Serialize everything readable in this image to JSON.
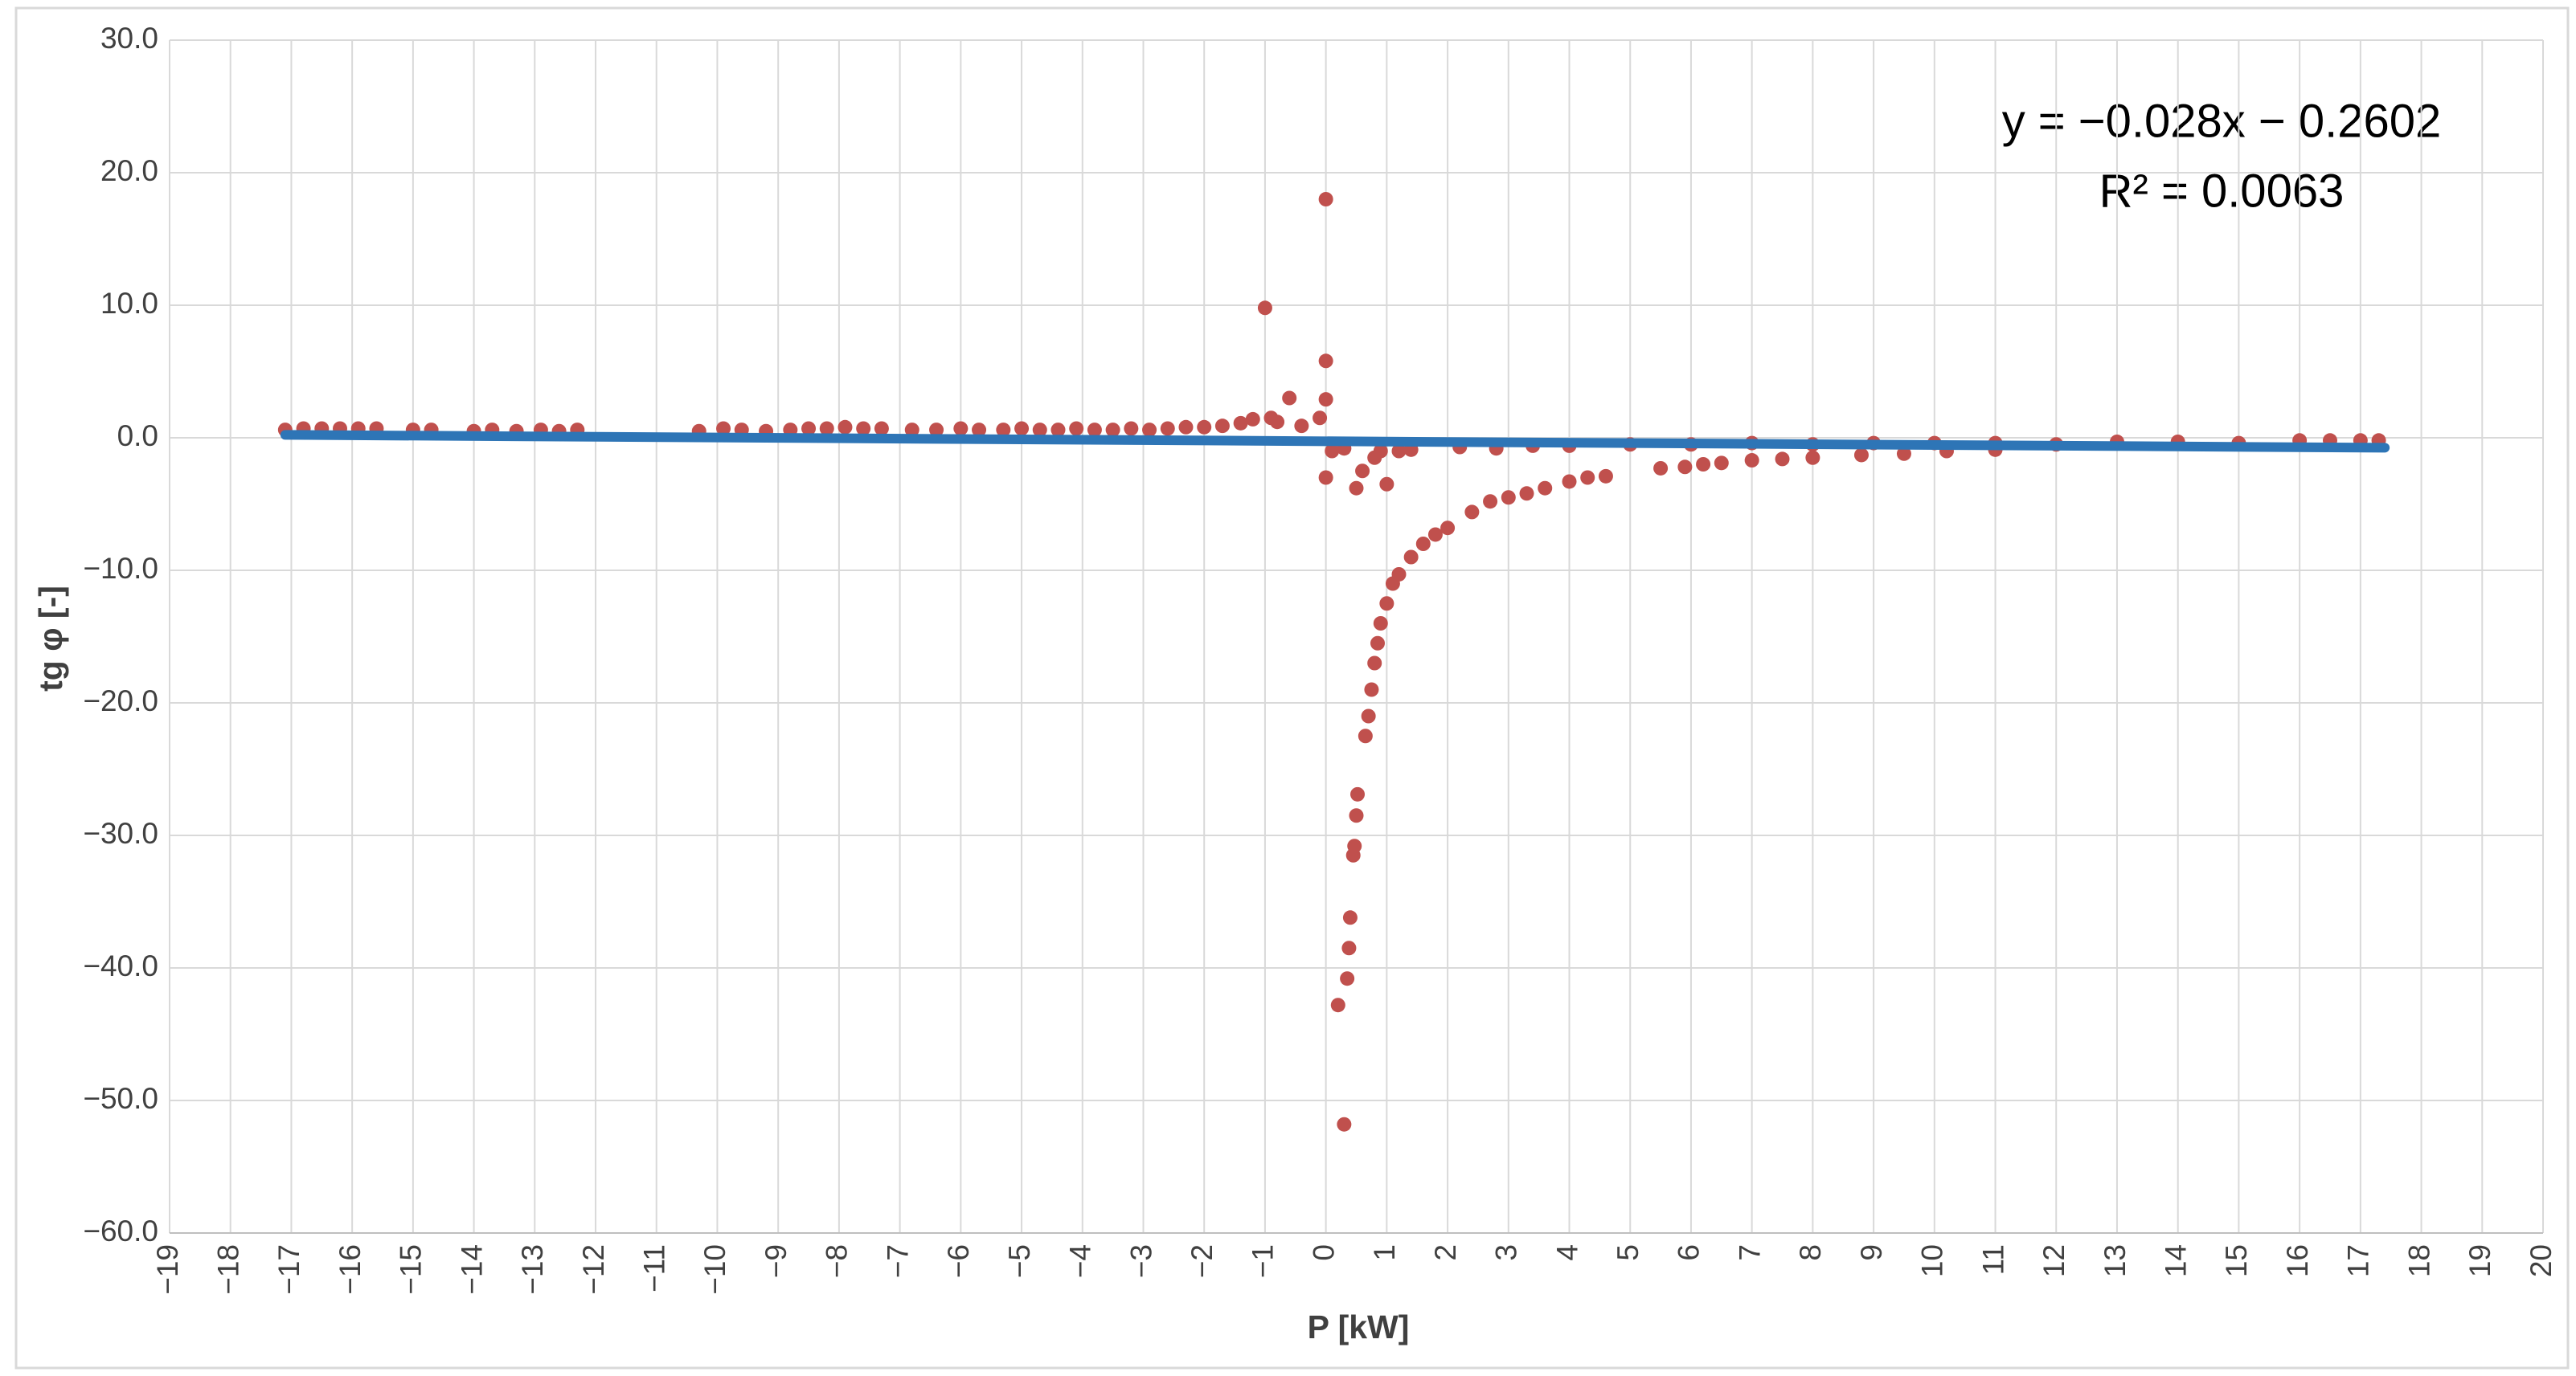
{
  "chart_data": {
    "type": "scatter",
    "x_label": "P [kW]",
    "y_label": "tg φ [-]",
    "annotations": [
      "y = −0.028x − 0.2602",
      "R² = 0.0063"
    ],
    "grid": true,
    "xlim": [
      -19,
      20
    ],
    "ylim": [
      -60,
      30
    ],
    "xticks": [
      {
        "value": -19,
        "label": "−19"
      },
      {
        "value": -18,
        "label": "−18"
      },
      {
        "value": -17,
        "label": "−17"
      },
      {
        "value": -16,
        "label": "−16"
      },
      {
        "value": -15,
        "label": "−15"
      },
      {
        "value": -14,
        "label": "−14"
      },
      {
        "value": -13,
        "label": "−13"
      },
      {
        "value": -12,
        "label": "−12"
      },
      {
        "value": -11,
        "label": "−11"
      },
      {
        "value": -10,
        "label": "−10"
      },
      {
        "value": -9,
        "label": "−9"
      },
      {
        "value": -8,
        "label": "−8"
      },
      {
        "value": -7,
        "label": "−7"
      },
      {
        "value": -6,
        "label": "−6"
      },
      {
        "value": -5,
        "label": "−5"
      },
      {
        "value": -4,
        "label": "−4"
      },
      {
        "value": -3,
        "label": "−3"
      },
      {
        "value": -2,
        "label": "−2"
      },
      {
        "value": -1,
        "label": "−1"
      },
      0,
      1,
      2,
      3,
      4,
      5,
      6,
      7,
      8,
      9,
      10,
      11,
      12,
      13,
      14,
      15,
      16,
      17,
      18,
      19,
      20
    ],
    "yticks": [
      {
        "value": -60,
        "label": "−60.0"
      },
      {
        "value": -50,
        "label": "−50.0"
      },
      {
        "value": -40,
        "label": "−40.0"
      },
      {
        "value": -30,
        "label": "−30.0"
      },
      {
        "value": -20,
        "label": "−20.0"
      },
      {
        "value": -10,
        "label": "−10.0"
      },
      {
        "value": 0,
        "label": "0.0"
      },
      {
        "value": 10,
        "label": "10.0"
      },
      {
        "value": 20,
        "label": "20.0"
      },
      {
        "value": 30,
        "label": "30.0"
      }
    ],
    "series": [
      {
        "color": "#c0504d",
        "x": [
          -17.1,
          -16.8,
          -16.5,
          -16.2,
          -15.9,
          -15.6,
          -15.0,
          -14.7,
          -14.0,
          -13.7,
          -13.3,
          -12.9,
          -12.6,
          -12.3,
          -10.3,
          -9.9,
          -9.6,
          -9.2,
          -8.8,
          -8.5,
          -8.2,
          -7.9,
          -7.6,
          -7.3,
          -6.8,
          -6.4,
          -6.0,
          -5.7,
          -5.3,
          -5.0,
          -4.7,
          -4.4,
          -4.1,
          -3.8,
          -3.5,
          -3.2,
          -2.9,
          -2.6,
          -2.3,
          -2.0,
          -1.7,
          -1.4,
          -1.2,
          -1.0,
          -0.9,
          -0.8,
          -0.6,
          -0.4,
          -0.1,
          0,
          0,
          0,
          0,
          0.1,
          0.2,
          0.3,
          0.3,
          0.35,
          0.38,
          0.4,
          0.45,
          0.47,
          0.5,
          0.52,
          0.5,
          0.6,
          0.65,
          0.7,
          0.75,
          0.8,
          0.85,
          0.9,
          1.0,
          1.1,
          1.2,
          1.4,
          1.6,
          1.8,
          2.0,
          2.4,
          2.7,
          3.0,
          3.3,
          3.6,
          4.0,
          4.3,
          4.6,
          5.5,
          5.9,
          6.2,
          6.5,
          7.0,
          7.5,
          8.0,
          8.8,
          9.5,
          10.2,
          11.0,
          0.8,
          1.0,
          0.9,
          1.2,
          1.4,
          2.2,
          2.8,
          3.4,
          4.0,
          5.0,
          6.0,
          7.0,
          8.0,
          9.0,
          10.0,
          11.0,
          12.0,
          13.0,
          14.0,
          15.0,
          16.0,
          16.5,
          17.0,
          17.3
        ],
        "values": [
          0.6,
          0.7,
          0.7,
          0.7,
          0.7,
          0.7,
          0.6,
          0.6,
          0.5,
          0.6,
          0.5,
          0.6,
          0.5,
          0.6,
          0.5,
          0.7,
          0.6,
          0.5,
          0.6,
          0.7,
          0.7,
          0.8,
          0.7,
          0.7,
          0.6,
          0.6,
          0.7,
          0.6,
          0.6,
          0.7,
          0.6,
          0.6,
          0.7,
          0.6,
          0.6,
          0.7,
          0.6,
          0.7,
          0.8,
          0.8,
          0.9,
          1.1,
          1.4,
          9.8,
          1.5,
          1.2,
          3.0,
          0.9,
          1.5,
          18.0,
          5.8,
          2.9,
          -3.0,
          -1.0,
          -42.8,
          -51.8,
          -0.8,
          -40.8,
          -38.5,
          -36.2,
          -31.5,
          -30.8,
          -28.5,
          -26.9,
          -3.8,
          -2.5,
          -22.5,
          -21.0,
          -19.0,
          -17.0,
          -15.5,
          -14.0,
          -12.5,
          -11.0,
          -10.3,
          -9.0,
          -8.0,
          -7.3,
          -6.8,
          -5.6,
          -4.8,
          -4.5,
          -4.2,
          -3.8,
          -3.3,
          -3.0,
          -2.9,
          -2.3,
          -2.2,
          -2.0,
          -1.9,
          -1.7,
          -1.6,
          -1.5,
          -1.3,
          -1.2,
          -1.0,
          -0.9,
          -1.5,
          -3.5,
          -1.0,
          -1.0,
          -0.9,
          -0.7,
          -0.8,
          -0.6,
          -0.6,
          -0.5,
          -0.5,
          -0.4,
          -0.5,
          -0.4,
          -0.4,
          -0.4,
          -0.5,
          -0.3,
          -0.3,
          -0.4,
          -0.2,
          -0.2,
          -0.2,
          -0.2
        ]
      }
    ],
    "trendline": {
      "color": "#2e75b6",
      "x": [
        -17.1,
        17.4
      ],
      "values": [
        0.22,
        -0.75
      ]
    }
  }
}
